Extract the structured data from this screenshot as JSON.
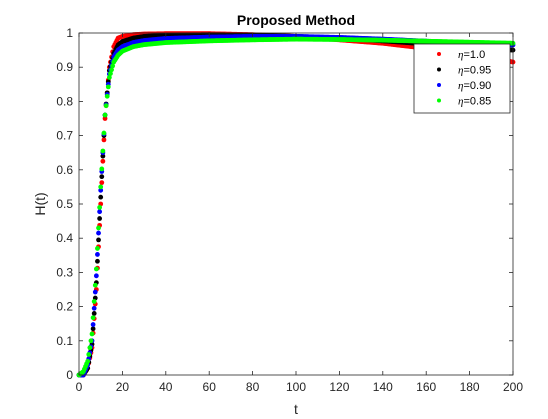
{
  "chart_data": {
    "type": "scatter",
    "title": "Proposed Method",
    "xlabel": "t",
    "ylabel": "H(t)",
    "xlim": [
      0,
      200
    ],
    "ylim": [
      0,
      1
    ],
    "xticks": [
      "0",
      "20",
      "40",
      "60",
      "80",
      "100",
      "120",
      "140",
      "160",
      "180",
      "200"
    ],
    "yticks": [
      "0",
      "0.1",
      "0.2",
      "0.3",
      "0.4",
      "0.5",
      "0.6",
      "0.7",
      "0.8",
      "0.9",
      "1"
    ],
    "grid": false,
    "legend_position": "top-right",
    "series": [
      {
        "name": "η=1.0",
        "legend_symbol": "η",
        "legend_value": "=1.0",
        "color": "#ff0000",
        "x": [
          0,
          2,
          4,
          6,
          8,
          10,
          12,
          14,
          16,
          18,
          20,
          25,
          30,
          40,
          60,
          80,
          100,
          120,
          140,
          160,
          180,
          200
        ],
        "y": [
          0,
          0.0,
          0.02,
          0.08,
          0.25,
          0.5,
          0.75,
          0.9,
          0.96,
          0.985,
          0.99,
          0.995,
          0.997,
          0.998,
          0.998,
          0.995,
          0.99,
          0.98,
          0.97,
          0.955,
          0.94,
          0.915
        ]
      },
      {
        "name": "η=0.95",
        "legend_symbol": "η",
        "legend_value": "=0.95",
        "color": "#000000",
        "x": [
          0,
          2,
          4,
          6,
          8,
          10,
          12,
          14,
          16,
          18,
          20,
          25,
          30,
          40,
          60,
          80,
          100,
          120,
          140,
          160,
          180,
          200
        ],
        "y": [
          0,
          0.0,
          0.02,
          0.09,
          0.27,
          0.52,
          0.76,
          0.89,
          0.94,
          0.965,
          0.975,
          0.985,
          0.99,
          0.993,
          0.995,
          0.994,
          0.99,
          0.985,
          0.977,
          0.968,
          0.958,
          0.95
        ]
      },
      {
        "name": "η=0.90",
        "legend_symbol": "η",
        "legend_value": "=0.90",
        "color": "#0000ff",
        "x": [
          0,
          2,
          4,
          6,
          8,
          10,
          12,
          14,
          16,
          18,
          20,
          25,
          30,
          40,
          60,
          80,
          100,
          120,
          140,
          160,
          180,
          200
        ],
        "y": [
          0,
          0.0,
          0.03,
          0.1,
          0.29,
          0.54,
          0.76,
          0.88,
          0.93,
          0.95,
          0.96,
          0.972,
          0.978,
          0.984,
          0.988,
          0.99,
          0.99,
          0.987,
          0.982,
          0.976,
          0.97,
          0.965
        ]
      },
      {
        "name": "η=0.85",
        "legend_symbol": "η",
        "legend_value": "=0.85",
        "color": "#00ff00",
        "x": [
          0,
          2,
          4,
          6,
          8,
          10,
          12,
          14,
          16,
          18,
          20,
          25,
          30,
          40,
          60,
          80,
          100,
          120,
          140,
          160,
          180,
          200
        ],
        "y": [
          0,
          0.01,
          0.04,
          0.12,
          0.31,
          0.55,
          0.76,
          0.87,
          0.915,
          0.935,
          0.947,
          0.96,
          0.966,
          0.972,
          0.977,
          0.98,
          0.982,
          0.981,
          0.979,
          0.976,
          0.973,
          0.97
        ]
      }
    ]
  }
}
